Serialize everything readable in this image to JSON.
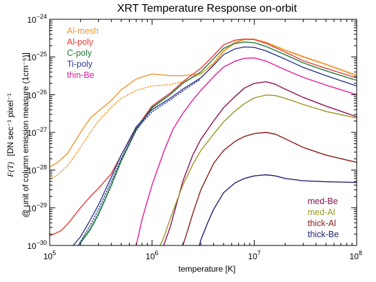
{
  "chart_data": {
    "type": "line",
    "title": "XRT Temperature Response on-orbit",
    "xlabel": "temperature [K]",
    "ylabel": {
      "symbol": "F(T)",
      "line1": "[DN sec⁻¹ pixel⁻¹",
      "line2": "@ unit of column emission measure (1cm⁻⁵)]"
    },
    "xscale": "log",
    "yscale": "log",
    "xlim": [
      100000,
      100000000
    ],
    "ylim": [
      1e-30,
      1e-24
    ],
    "x_ticks": [
      {
        "value": 100000,
        "base": "10",
        "exp": "5"
      },
      {
        "value": 1000000,
        "base": "10",
        "exp": "6"
      },
      {
        "value": 10000000,
        "base": "10",
        "exp": "7"
      },
      {
        "value": 100000000,
        "base": "10",
        "exp": "8"
      }
    ],
    "y_ticks": [
      {
        "value": 1e-30,
        "base": "10",
        "exp": "−30"
      },
      {
        "value": 1e-29,
        "base": "10",
        "exp": "−29"
      },
      {
        "value": 1e-28,
        "base": "10",
        "exp": "−28"
      },
      {
        "value": 1e-27,
        "base": "10",
        "exp": "−27"
      },
      {
        "value": 1e-26,
        "base": "10",
        "exp": "−26"
      },
      {
        "value": 1e-25,
        "base": "10",
        "exp": "−25"
      },
      {
        "value": 1e-24,
        "base": "10",
        "exp": "−24"
      }
    ],
    "legend_top_left": [
      "Al-mesh",
      "Al-poly",
      "C-poly",
      "Ti-poly",
      "thin-Be"
    ],
    "legend_bottom_right": [
      "med-Be",
      "med-Al",
      "thick-Al",
      "thick-Be"
    ],
    "series": [
      {
        "name": "Al-mesh",
        "color": "#f0962a",
        "dash": "solid",
        "x": [
          100000,
          120000,
          150000,
          200000,
          250000,
          300000,
          400000,
          500000,
          700000,
          1000000,
          1500000,
          2000000,
          3000000,
          4000000,
          5000000,
          6500000,
          8000000,
          10000000,
          13000000,
          20000000,
          30000000,
          50000000,
          100000000
        ],
        "y": [
          1.2e-28,
          1.6e-28,
          2.8e-28,
          1e-27,
          2.4e-27,
          3.7e-27,
          7e-27,
          1.35e-26,
          2.6e-26,
          3.55e-26,
          3.2e-26,
          3.2e-26,
          3.6e-26,
          6.5e-26,
          1.4e-25,
          2.4e-25,
          2.9e-25,
          2.9e-25,
          2.4e-25,
          1.5e-25,
          1e-25,
          6.3e-26,
          3.2e-26
        ]
      },
      {
        "name": "Al-mesh",
        "color": "#f0962a",
        "dash": "dot",
        "x": [
          100000,
          120000,
          150000,
          200000,
          250000,
          300000,
          400000,
          500000,
          700000,
          1000000,
          1500000,
          2000000,
          3000000,
          4000000,
          5000000,
          6500000,
          8000000,
          10000000,
          13000000,
          20000000,
          30000000,
          50000000,
          100000000
        ],
        "y": [
          5.6e-29,
          7.5e-29,
          1.3e-28,
          4e-28,
          1e-27,
          2e-27,
          4.7e-27,
          8e-27,
          1.3e-26,
          1.7e-26,
          1.85e-26,
          2.2e-26,
          3.5e-26,
          7e-26,
          1.5e-25,
          2.5e-25,
          3e-25,
          3e-25,
          2.5e-25,
          1.55e-25,
          1.05e-25,
          6.5e-26,
          3.3e-26
        ]
      },
      {
        "name": "Al-poly",
        "color": "#e23a36",
        "dash": "solid",
        "x": [
          100000,
          110000,
          130000,
          150000,
          200000,
          250000,
          300000,
          400000,
          500000,
          700000,
          1000000,
          1500000,
          2000000,
          3000000,
          4000000,
          5000000,
          6500000,
          8000000,
          10000000,
          13000000,
          20000000,
          30000000,
          50000000,
          100000000
        ],
        "y": [
          1.8e-30,
          2e-30,
          2.5e-30,
          3.7e-30,
          1e-29,
          2e-29,
          3.3e-29,
          8e-29,
          2.5e-28,
          1.3e-27,
          5e-27,
          1.1e-26,
          2.2e-26,
          5e-26,
          1.1e-25,
          2.1e-25,
          2.8e-25,
          3e-25,
          2.9e-25,
          2.3e-25,
          1.35e-25,
          8e-26,
          5e-26,
          2.8e-26
        ]
      },
      {
        "name": "C-poly",
        "color": "#1f7a3a",
        "dash": "solid",
        "x": [
          190000,
          200000,
          250000,
          300000,
          400000,
          500000,
          700000,
          1000000,
          1500000,
          2000000,
          3000000,
          4000000,
          5000000,
          6500000,
          8000000,
          10000000,
          13000000,
          20000000,
          30000000,
          50000000,
          100000000
        ],
        "y": [
          1e-30,
          1.2e-30,
          2.8e-30,
          7e-30,
          4e-29,
          1.8e-28,
          1.2e-27,
          4.6e-27,
          1e-26,
          2e-26,
          4e-26,
          9e-26,
          1.7e-25,
          2.3e-25,
          2.5e-25,
          2.4e-25,
          1.9e-25,
          1.15e-25,
          7e-26,
          4.3e-26,
          2.4e-26
        ]
      },
      {
        "name": "C-poly",
        "color": "#1f7a3a",
        "dash": "dot",
        "x": [
          190000,
          200000,
          250000,
          300000,
          400000,
          500000,
          700000,
          1000000,
          1500000,
          2000000
        ],
        "y": [
          1e-30,
          1.15e-30,
          2.6e-30,
          6.5e-30,
          3.8e-29,
          1.7e-28,
          1.1e-27,
          4.4e-27,
          1e-26,
          2e-26
        ]
      },
      {
        "name": "Ti-poly",
        "color": "#2e3a8c",
        "dash": "solid",
        "x": [
          170000,
          200000,
          250000,
          300000,
          400000,
          500000,
          700000,
          1000000,
          1500000,
          2000000,
          3000000,
          4000000,
          5000000,
          6500000,
          8000000,
          10000000,
          13000000,
          20000000,
          30000000,
          50000000,
          100000000
        ],
        "y": [
          1e-30,
          1.7e-30,
          4.8e-30,
          1.2e-29,
          6.5e-29,
          2.5e-28,
          1.4e-27,
          4e-27,
          8e-27,
          1.4e-26,
          2.8e-26,
          6e-26,
          1.15e-25,
          1.65e-25,
          1.85e-25,
          1.8e-25,
          1.45e-25,
          8.8e-26,
          5.3e-26,
          3.2e-26,
          1.7e-26
        ]
      },
      {
        "name": "Ti-poly",
        "color": "#2e3a8c",
        "dash": "dot",
        "x": [
          190000,
          250000,
          300000,
          400000,
          500000,
          700000,
          1000000,
          1500000,
          2000000,
          3000000
        ],
        "y": [
          1e-30,
          3.5e-30,
          9e-30,
          5e-29,
          2e-28,
          1.2e-27,
          3.5e-27,
          7.2e-27,
          1.25e-26,
          2.6e-26
        ]
      },
      {
        "name": "thin-Be",
        "color": "#e0199a",
        "dash": "solid",
        "x": [
          700000,
          800000,
          1000000,
          1300000,
          1600000,
          2000000,
          2500000,
          3000000,
          4000000,
          5000000,
          6500000,
          8000000,
          10000000,
          13000000,
          20000000,
          30000000,
          50000000,
          100000000
        ],
        "y": [
          1e-30,
          5e-30,
          4e-29,
          3e-28,
          1.2e-27,
          3.2e-27,
          7.2e-27,
          1.3e-26,
          3e-26,
          5.4e-26,
          7.8e-26,
          9.2e-26,
          9.4e-26,
          7.8e-26,
          4.6e-26,
          2.9e-26,
          1.8e-26,
          1e-26
        ]
      },
      {
        "name": "med-Be",
        "color": "#8a1052",
        "dash": "solid",
        "x": [
          1300000,
          1500000,
          2000000,
          2500000,
          3000000,
          4000000,
          5000000,
          6500000,
          8000000,
          10000000,
          13000000,
          16000000,
          20000000,
          30000000,
          50000000,
          100000000
        ],
        "y": [
          1e-30,
          3e-30,
          5e-29,
          2.5e-28,
          6.5e-28,
          2e-27,
          4.5e-27,
          9e-27,
          1.5e-26,
          2e-26,
          2.2e-26,
          1.9e-26,
          1.4e-26,
          8.5e-27,
          5e-27,
          2.6e-27
        ]
      },
      {
        "name": "med-Al",
        "color": "#9a9420",
        "dash": "solid",
        "x": [
          1200000,
          1300000,
          1500000,
          2000000,
          2500000,
          3000000,
          4000000,
          5000000,
          6500000,
          8000000,
          10000000,
          13000000,
          16000000,
          20000000,
          30000000,
          50000000,
          100000000
        ],
        "y": [
          1e-30,
          1.6e-30,
          5e-30,
          4e-29,
          1.4e-28,
          3.3e-28,
          9e-28,
          1.9e-27,
          3.7e-27,
          5.8e-27,
          8.2e-27,
          9.8e-27,
          9.5e-27,
          8e-27,
          5.5e-27,
          3.6e-27,
          2.4e-27
        ]
      },
      {
        "name": "thick-Al",
        "color": "#8b1a1a",
        "dash": "solid",
        "x": [
          2000000,
          2200000,
          2500000,
          3000000,
          4000000,
          5000000,
          6500000,
          8000000,
          10000000,
          13000000,
          16000000,
          20000000,
          30000000,
          50000000,
          100000000
        ],
        "y": [
          1e-30,
          2.2e-30,
          7e-30,
          3e-29,
          1.5e-28,
          3.3e-28,
          5.8e-28,
          7.8e-28,
          9.3e-28,
          1e-27,
          9e-28,
          6.8e-28,
          4e-28,
          2.5e-28,
          1.6e-28
        ]
      },
      {
        "name": "thick-Be",
        "color": "#1f1f6e",
        "dash": "solid",
        "x": [
          2900000,
          3000000,
          3500000,
          4000000,
          5000000,
          6500000,
          8000000,
          10000000,
          13000000,
          16000000,
          20000000,
          30000000,
          50000000,
          100000000
        ],
        "y": [
          1e-30,
          1.4e-30,
          4e-30,
          9e-30,
          2.5e-29,
          4.6e-29,
          6e-29,
          7e-29,
          7.5e-29,
          7e-29,
          6e-29,
          5.2e-29,
          4.9e-29,
          4.7e-29
        ]
      }
    ]
  }
}
